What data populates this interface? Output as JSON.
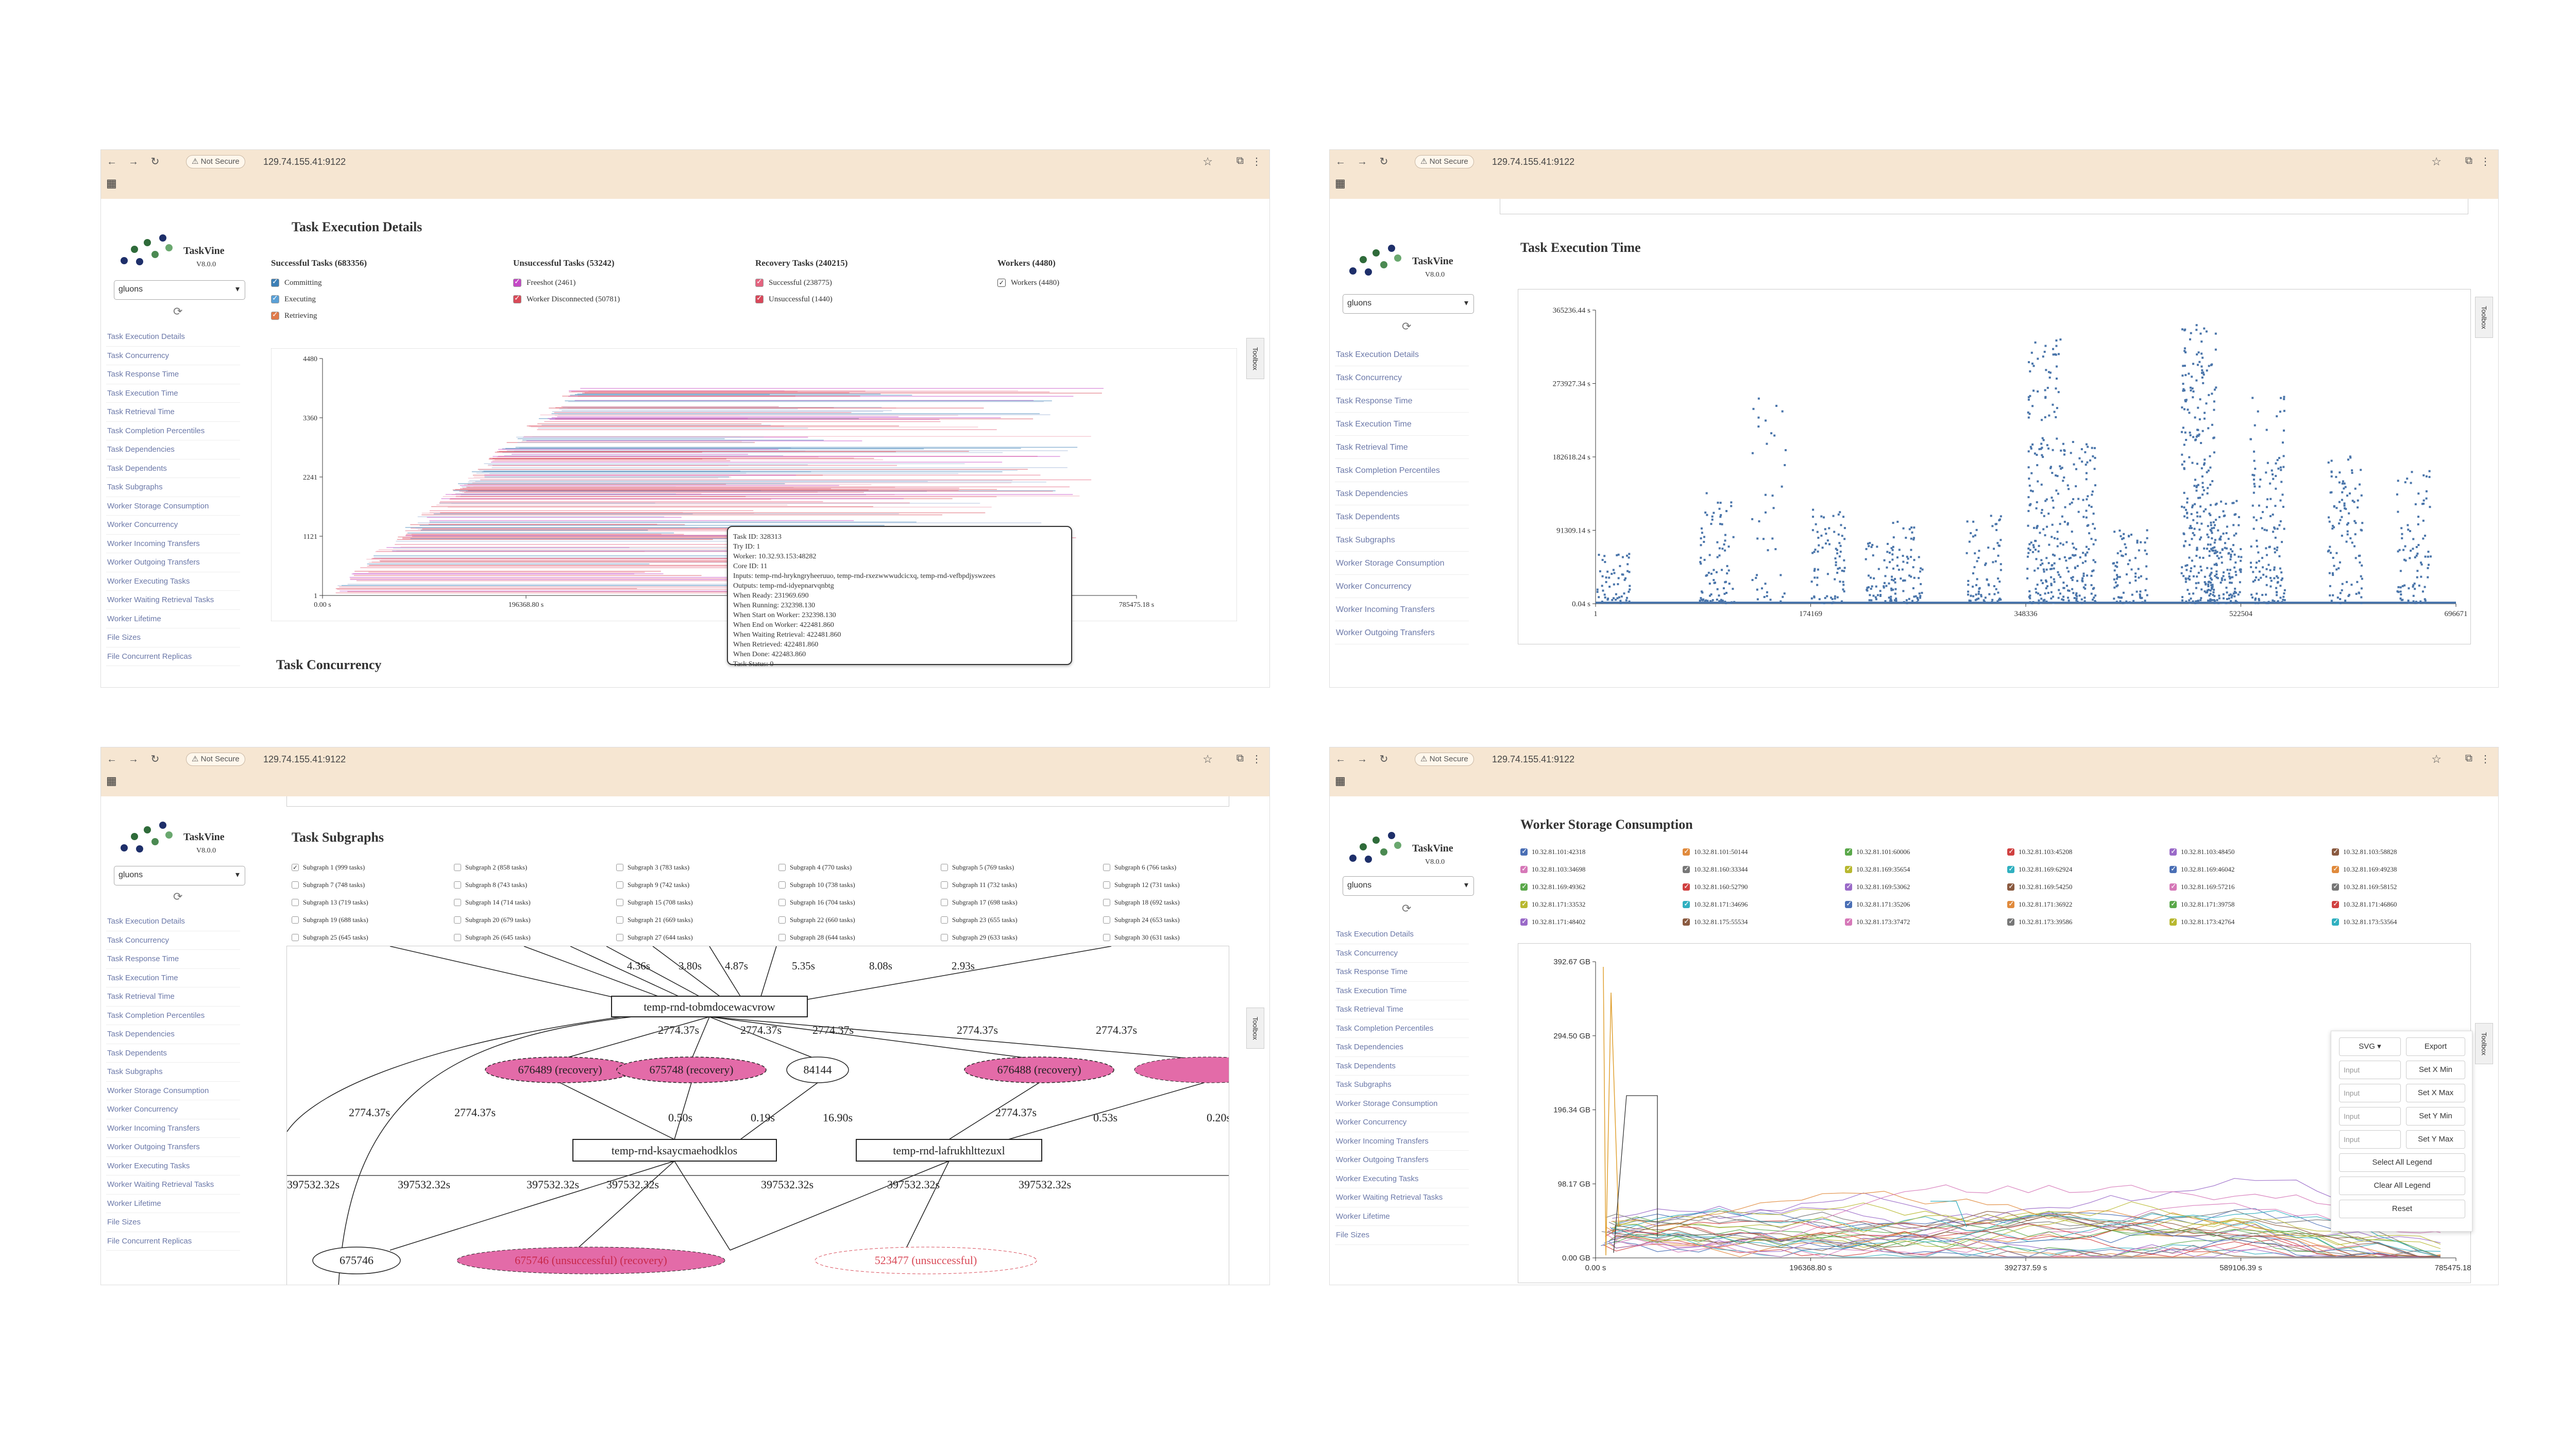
{
  "browser": {
    "security": "Not Secure",
    "url": "129.74.155.41:9122"
  },
  "app": {
    "name": "TaskVine",
    "version": "V8.0.0",
    "selector": "gluons"
  },
  "nav": [
    "Task Execution Details",
    "Task Concurrency",
    "Task Response Time",
    "Task Execution Time",
    "Task Retrieval Time",
    "Task Completion Percentiles",
    "Task Dependencies",
    "Task Dependents",
    "Task Subgraphs",
    "Worker Storage Consumption",
    "Worker Concurrency",
    "Worker Incoming Transfers",
    "Worker Outgoing Transfers",
    "Worker Executing Tasks",
    "Worker Waiting Retrieval Tasks",
    "Worker Lifetime",
    "File Sizes",
    "File Concurrent Replicas"
  ],
  "toolbox": "Toolbox",
  "panel1": {
    "title": "Task Execution Details",
    "next_title": "Task Concurrency",
    "legend": [
      {
        "title": "Successful Tasks (683356)",
        "items": [
          {
            "label": "Committing",
            "color": "#3b7fb6"
          },
          {
            "label": "Executing",
            "color": "#5aa0d6"
          },
          {
            "label": "Retrieving",
            "color": "#e07a4a"
          }
        ]
      },
      {
        "title": "Unsuccessful Tasks (53242)",
        "items": [
          {
            "label": "Freeshot (2461)",
            "color": "#c548c6"
          },
          {
            "label": "Worker Disconnected (50781)",
            "color": "#d94a58"
          }
        ]
      },
      {
        "title": "Recovery Tasks (240215)",
        "items": [
          {
            "label": "Successful (238775)",
            "color": "#e4637f"
          },
          {
            "label": "Unsuccessful (1440)",
            "color": "#d9475a"
          }
        ]
      },
      {
        "title": "Workers (4480)",
        "items": [
          {
            "label": "Workers (4480)",
            "color": "#fff"
          }
        ]
      }
    ],
    "yticks": [
      "4480",
      "3360",
      "2241",
      "1121",
      "1"
    ],
    "xticks": [
      "0.00 s",
      "196368.80 s",
      "785475.18 s"
    ],
    "tooltip": [
      "Task ID: 328313",
      "Try ID: 1",
      "Worker: 10.32.93.153:48282",
      "Core ID: 11",
      "Inputs: temp-rnd-hrykngryheeruuo, temp-rnd-rxezwwwudcicxq, temp-rnd-vefbpdjyswzees",
      "Outputs: temp-rnd-idyepnarvqnbtg",
      "When Ready: 231969.690",
      "When Running: 232398.130",
      "When Start on Worker: 232398.130",
      "When End on Worker: 422481.860",
      "When Waiting Retrieval: 422481.860",
      "When Retrieved: 422481.860",
      "When Done: 422483.860",
      "Task Status: 0"
    ]
  },
  "panel2": {
    "title": "Task Execution Time",
    "chart_data": {
      "type": "scatter",
      "title": "Task Execution Time",
      "xlabel": "",
      "ylabel": "",
      "yticks": [
        "365236.44 s",
        "273927.34 s",
        "182618.24 s",
        "91309.14 s",
        "0.04 s"
      ],
      "xticks": [
        "1",
        "174169",
        "348336",
        "522504",
        "696671"
      ],
      "xlim": [
        1,
        696671
      ],
      "ylim": [
        0.04,
        365236.44
      ]
    }
  },
  "panel3": {
    "title": "Task Subgraphs",
    "subgraphs": [
      "Subgraph 1 (999 tasks)",
      "Subgraph 2 (858 tasks)",
      "Subgraph 3 (783 tasks)",
      "Subgraph 4 (770 tasks)",
      "Subgraph 5 (769 tasks)",
      "Subgraph 6 (766 tasks)",
      "Subgraph 7 (748 tasks)",
      "Subgraph 8 (743 tasks)",
      "Subgraph 9 (742 tasks)",
      "Subgraph 10 (738 tasks)",
      "Subgraph 11 (732 tasks)",
      "Subgraph 12 (731 tasks)",
      "Subgraph 13 (719 tasks)",
      "Subgraph 14 (714 tasks)",
      "Subgraph 15 (708 tasks)",
      "Subgraph 16 (704 tasks)",
      "Subgraph 17 (698 tasks)",
      "Subgraph 18 (692 tasks)",
      "Subgraph 19 (688 tasks)",
      "Subgraph 20 (679 tasks)",
      "Subgraph 21 (669 tasks)",
      "Subgraph 22 (660 tasks)",
      "Subgraph 23 (655 tasks)",
      "Subgraph 24 (653 tasks)",
      "Subgraph 25 (645 tasks)",
      "Subgraph 26 (645 tasks)",
      "Subgraph 27 (644 tasks)",
      "Subgraph 28 (644 tasks)",
      "Subgraph 29 (633 tasks)",
      "Subgraph 30 (631 tasks)"
    ],
    "edges_top": [
      "4.36s",
      "3.80s",
      "4.87s",
      "5.35s",
      "8.08s",
      "2.93s"
    ],
    "node_main": "temp-rnd-tobmdocewacvrow",
    "edges_mid": [
      "2774.37s",
      "2774.37s",
      "2774.37s",
      "2774.37s",
      "2774.37s"
    ],
    "nodes_row1": [
      "676489 (recovery)",
      "675748 (recovery)",
      "84144",
      "676488 (recovery)"
    ],
    "edges_low": [
      "2774.37s",
      "2774.37s",
      "0.50s",
      "0.19s",
      "16.90s",
      "2774.37s",
      "0.53s",
      "0.20s"
    ],
    "node_a": "temp-rnd-ksaycmaehodklos",
    "node_b": "temp-rnd-lafrukhlttezuxl",
    "edges_bottom": [
      "397532.32s",
      "397532.32s",
      "397532.32s",
      "397532.32s",
      "397532.32s",
      "397532.32s",
      "397532.32s"
    ],
    "nodes_bottom": [
      "675746",
      "675746 (unsuccessful) (recovery)",
      "523477 (unsuccessful)"
    ]
  },
  "panel4": {
    "title": "Worker Storage Consumption",
    "workers": [
      {
        "label": "10.32.81.101:42318",
        "color": "#4a6fb5"
      },
      {
        "label": "10.32.81.101:50144",
        "color": "#e08a3c"
      },
      {
        "label": "10.32.81.101:60006",
        "color": "#5aa84a"
      },
      {
        "label": "10.32.81.103:45208",
        "color": "#d04040"
      },
      {
        "label": "10.32.81.103:48450",
        "color": "#9a6ac8"
      },
      {
        "label": "10.32.81.103:58828",
        "color": "#8a5a40"
      },
      {
        "label": "10.32.81.103:34698",
        "color": "#d678b8"
      },
      {
        "label": "10.32.81.160:33344",
        "color": "#777777"
      },
      {
        "label": "10.32.81.169:35654",
        "color": "#b8b830"
      },
      {
        "label": "10.32.81.169:62924",
        "color": "#30b0c0"
      },
      {
        "label": "10.32.81.169:46042",
        "color": "#4a6fb5"
      },
      {
        "label": "10.32.81.169:49238",
        "color": "#e08a3c"
      },
      {
        "label": "10.32.81.169:49362",
        "color": "#5aa84a"
      },
      {
        "label": "10.32.81.160:52790",
        "color": "#d04040"
      },
      {
        "label": "10.32.81.169:53062",
        "color": "#9a6ac8"
      },
      {
        "label": "10.32.81.169:54250",
        "color": "#8a5a40"
      },
      {
        "label": "10.32.81.169:57216",
        "color": "#d678b8"
      },
      {
        "label": "10.32.81.169:58152",
        "color": "#777777"
      },
      {
        "label": "10.32.81.171:33532",
        "color": "#b8b830"
      },
      {
        "label": "10.32.81.171:34696",
        "color": "#30b0c0"
      },
      {
        "label": "10.32.81.171:35206",
        "color": "#4a6fb5"
      },
      {
        "label": "10.32.81.171:36922",
        "color": "#e08a3c"
      },
      {
        "label": "10.32.81.171:39758",
        "color": "#5aa84a"
      },
      {
        "label": "10.32.81.171:46860",
        "color": "#d04040"
      },
      {
        "label": "10.32.81.171:48402",
        "color": "#9a6ac8"
      },
      {
        "label": "10.32.81.175:55534",
        "color": "#8a5a40"
      },
      {
        "label": "10.32.81.173:37472",
        "color": "#d678b8"
      },
      {
        "label": "10.32.81.173:39586",
        "color": "#777777"
      },
      {
        "label": "10.32.81.173:42764",
        "color": "#b8b830"
      },
      {
        "label": "10.32.81.173:53564",
        "color": "#30b0c0"
      }
    ],
    "yticks": [
      "392.67 GB",
      "294.50 GB",
      "196.34 GB",
      "98.17 GB",
      "0.00 GB"
    ],
    "xticks": [
      "0.00 s",
      "196368.80 s",
      "392737.59 s",
      "589106.39 s",
      "785475.18 s"
    ],
    "tool": {
      "format": "SVG",
      "export": "Export",
      "input": "Input",
      "set_x_min": "Set X Min",
      "set_x_max": "Set X Max",
      "set_y_min": "Set Y Min",
      "set_y_max": "Set Y Max",
      "select_all": "Select All Legend",
      "clear_all": "Clear All Legend",
      "reset": "Reset"
    }
  }
}
